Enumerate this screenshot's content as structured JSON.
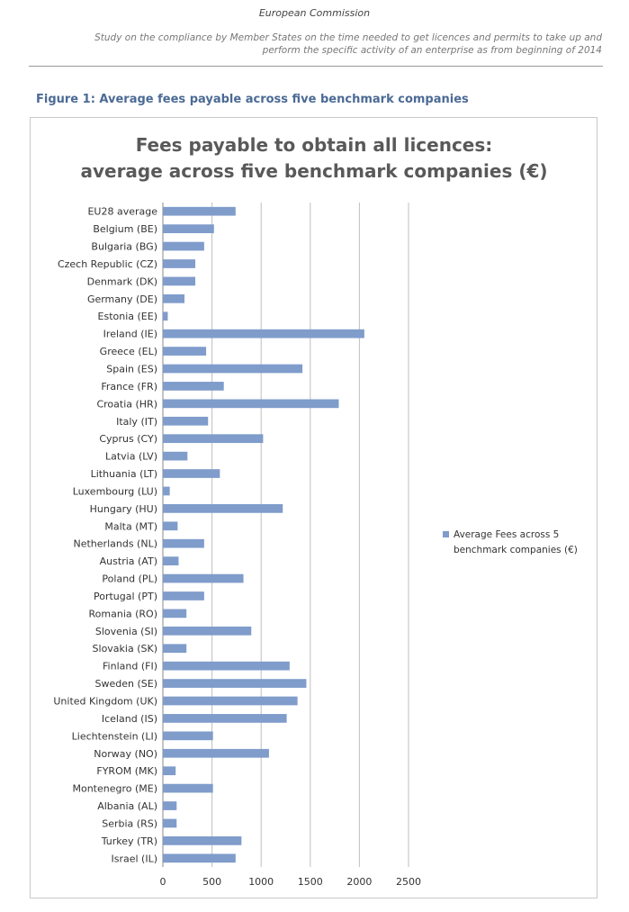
{
  "header": {
    "org": "European Commission",
    "subtitle_line1": "Study on the compliance by Member States on the time needed to get licences and permits to take up and",
    "subtitle_line2": "perform the specific activity of an enterprise as from beginning of 2014"
  },
  "figure": {
    "title": "Figure 1:  Average fees payable across five benchmark companies"
  },
  "chart_data": {
    "type": "bar",
    "orientation": "horizontal",
    "title_lines": [
      "Fees payable to obtain all licences:",
      "average across five benchmark companies (€)"
    ],
    "categories": [
      "EU28 average",
      "Belgium (BE)",
      "Bulgaria (BG)",
      "Czech Republic (CZ)",
      "Denmark (DK)",
      "Germany (DE)",
      "Estonia (EE)",
      "Ireland (IE)",
      "Greece (EL)",
      "Spain (ES)",
      "France (FR)",
      "Croatia (HR)",
      "Italy (IT)",
      "Cyprus (CY)",
      "Latvia (LV)",
      "Lithuania (LT)",
      "Luxembourg (LU)",
      "Hungary (HU)",
      "Malta (MT)",
      "Netherlands (NL)",
      "Austria (AT)",
      "Poland (PL)",
      "Portugal (PT)",
      "Romania (RO)",
      "Slovenia (SI)",
      "Slovakia (SK)",
      "Finland (FI)",
      "Sweden (SE)",
      "United Kingdom (UK)",
      "Iceland (IS)",
      "Liechtenstein (LI)",
      "Norway (NO)",
      "FYROM (MK)",
      "Montenegro (ME)",
      "Albania (AL)",
      "Serbia (RS)",
      "Turkey (TR)",
      "Israel (IL)"
    ],
    "series": [
      {
        "name": "Average Fees across 5 benchmark companies (€)",
        "values": [
          740,
          520,
          420,
          330,
          330,
          220,
          50,
          2050,
          440,
          1420,
          620,
          1790,
          460,
          1020,
          250,
          580,
          70,
          1220,
          150,
          420,
          160,
          820,
          420,
          240,
          900,
          240,
          1290,
          1460,
          1370,
          1260,
          510,
          1080,
          130,
          510,
          140,
          140,
          800,
          740
        ]
      }
    ],
    "legend_lines": [
      "Average Fees across 5",
      "benchmark companies (€)"
    ],
    "xlim": [
      0,
      2500
    ],
    "xticks": [
      0,
      500,
      1000,
      1500,
      2000,
      2500
    ],
    "grid": true,
    "legend_position": "right",
    "bar_color": "#7f9ccb"
  }
}
